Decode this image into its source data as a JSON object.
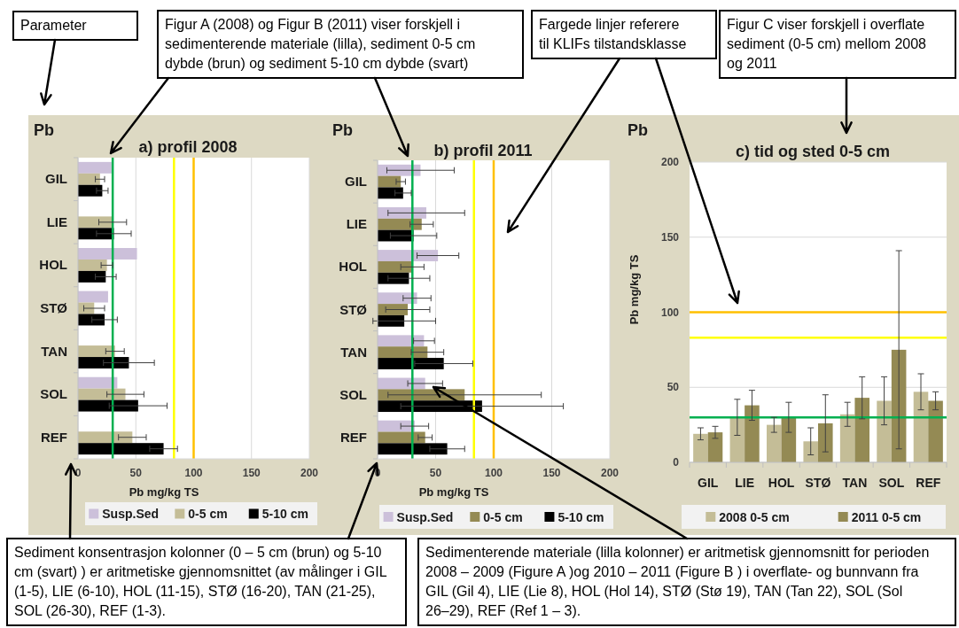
{
  "chart_data": [
    {
      "type": "bar",
      "orientation": "horizontal",
      "title": "a) profil 2008",
      "subtitle": "Pb",
      "xlabel": "Pb mg/kg TS",
      "categories": [
        "GIL",
        "LIE",
        "HOL",
        "STØ",
        "TAN",
        "SOL",
        "REF"
      ],
      "series": [
        {
          "name": "Susp.Sed",
          "color": "#ccc0da",
          "values": [
            29,
            null,
            51,
            26,
            null,
            34,
            null
          ]
        },
        {
          "name": "0-5 cm",
          "color": "#c4bd97",
          "values": [
            19,
            30,
            25,
            14,
            32,
            41,
            47
          ],
          "errors": [
            4,
            12,
            5,
            9,
            8,
            16,
            12
          ]
        },
        {
          "name": "5-10 cm",
          "color": "#000000",
          "values": [
            21,
            31,
            24,
            23,
            44,
            52,
            74
          ],
          "errors": [
            5,
            15,
            9,
            11,
            22,
            25,
            12
          ]
        }
      ],
      "xlim": [
        0,
        200
      ],
      "xticks": [
        0,
        50,
        100,
        150,
        200
      ],
      "grid": "x",
      "legend": "bottom",
      "ref_lines": [
        {
          "axis": "x",
          "value": 30,
          "color": "#00b050"
        },
        {
          "axis": "x",
          "value": 83,
          "color": "#ffff00"
        },
        {
          "axis": "x",
          "value": 100,
          "color": "#ffc000"
        }
      ],
      "annotations": [
        "Parameter",
        "Figur A (2008) og Figur B (2011) viser forskjell i sedimenterende materiale (lilla), sediment 0-5 cm dybde (brun) og sediment 5-10 cm dybde (svart)",
        "Sediment konsentrasjon kolonner (0 – 5 cm (brun) og 5-10 cm (svart) ) er aritmetiske gjennomsnittet (av målinger i GIL (1-5), LIE (6-10), HOL (11-15), STØ (16-20), TAN (21-25), SOL (26-30), REF (1-3)."
      ]
    },
    {
      "type": "bar",
      "orientation": "horizontal",
      "title": "b) profil 2011",
      "subtitle": "Pb",
      "xlabel": "Pb mg/kg TS",
      "categories": [
        "GIL",
        "LIE",
        "HOL",
        "STØ",
        "TAN",
        "SOL",
        "REF"
      ],
      "series": [
        {
          "name": "Susp.Sed",
          "color": "#ccc0da",
          "values": [
            37,
            42,
            52,
            34,
            40,
            41,
            32
          ],
          "errors": [
            29,
            33,
            18,
            12,
            9,
            15,
            12
          ]
        },
        {
          "name": "0-5 cm",
          "color": "#948a54",
          "values": [
            20,
            38,
            30,
            26,
            43,
            75,
            41
          ],
          "errors": [
            4,
            10,
            10,
            19,
            14,
            66,
            6
          ]
        },
        {
          "name": "5-10 cm",
          "color": "#000000",
          "values": [
            22,
            31,
            27,
            23,
            57,
            90,
            60
          ],
          "errors": [
            7,
            20,
            18,
            27,
            25,
            70,
            15
          ]
        }
      ],
      "xlim": [
        0,
        200
      ],
      "xticks": [
        0,
        50,
        100,
        150,
        200
      ],
      "grid": "x",
      "legend": "bottom",
      "ref_lines": [
        {
          "axis": "x",
          "value": 30,
          "color": "#00b050"
        },
        {
          "axis": "x",
          "value": 83,
          "color": "#ffff00"
        },
        {
          "axis": "x",
          "value": 100,
          "color": "#ffc000"
        }
      ],
      "annotations": [
        "Fargede linjer referere til KLIFs tilstandsklasse",
        "Sedimenterende materiale (lilla kolonner) er aritmetisk gjennomsnitt for perioden 2008 – 2009 (Figure A )og 2010 – 2011 (Figure B ) i overflate- og bunnvann fra GIL (Gil 4), LIE (Lie 8), HOL (Hol 14), STØ (Stø 19), TAN (Tan 22), SOL (Sol 26–29), REF (Ref 1 – 3)."
      ]
    },
    {
      "type": "bar",
      "title": "c) tid og sted 0-5 cm",
      "subtitle": "Pb",
      "ylabel": "Pb mg/kg TS",
      "categories": [
        "GIL",
        "LIE",
        "HOL",
        "STØ",
        "TAN",
        "SOL",
        "REF"
      ],
      "series": [
        {
          "name": "2008 0-5 cm",
          "color": "#c4bd97",
          "values": [
            19,
            30,
            25,
            14,
            32,
            41,
            47
          ],
          "errors": [
            4,
            12,
            5,
            9,
            8,
            16,
            12
          ]
        },
        {
          "name": "2011 0-5 cm",
          "color": "#948a54",
          "values": [
            20,
            38,
            30,
            26,
            43,
            75,
            41
          ],
          "errors": [
            4,
            10,
            10,
            19,
            14,
            66,
            6
          ]
        }
      ],
      "ylim": [
        0,
        200
      ],
      "yticks": [
        0,
        50,
        100,
        150,
        200
      ],
      "grid": "y",
      "legend": "bottom",
      "ref_lines": [
        {
          "axis": "y",
          "value": 30,
          "color": "#00b050"
        },
        {
          "axis": "y",
          "value": 83,
          "color": "#ffff00"
        },
        {
          "axis": "y",
          "value": 100,
          "color": "#ffc000"
        }
      ],
      "annotations": [
        "Figur C viser forskjell i overflate sediment (0-5 cm) mellom 2008 og 2011"
      ]
    }
  ]
}
